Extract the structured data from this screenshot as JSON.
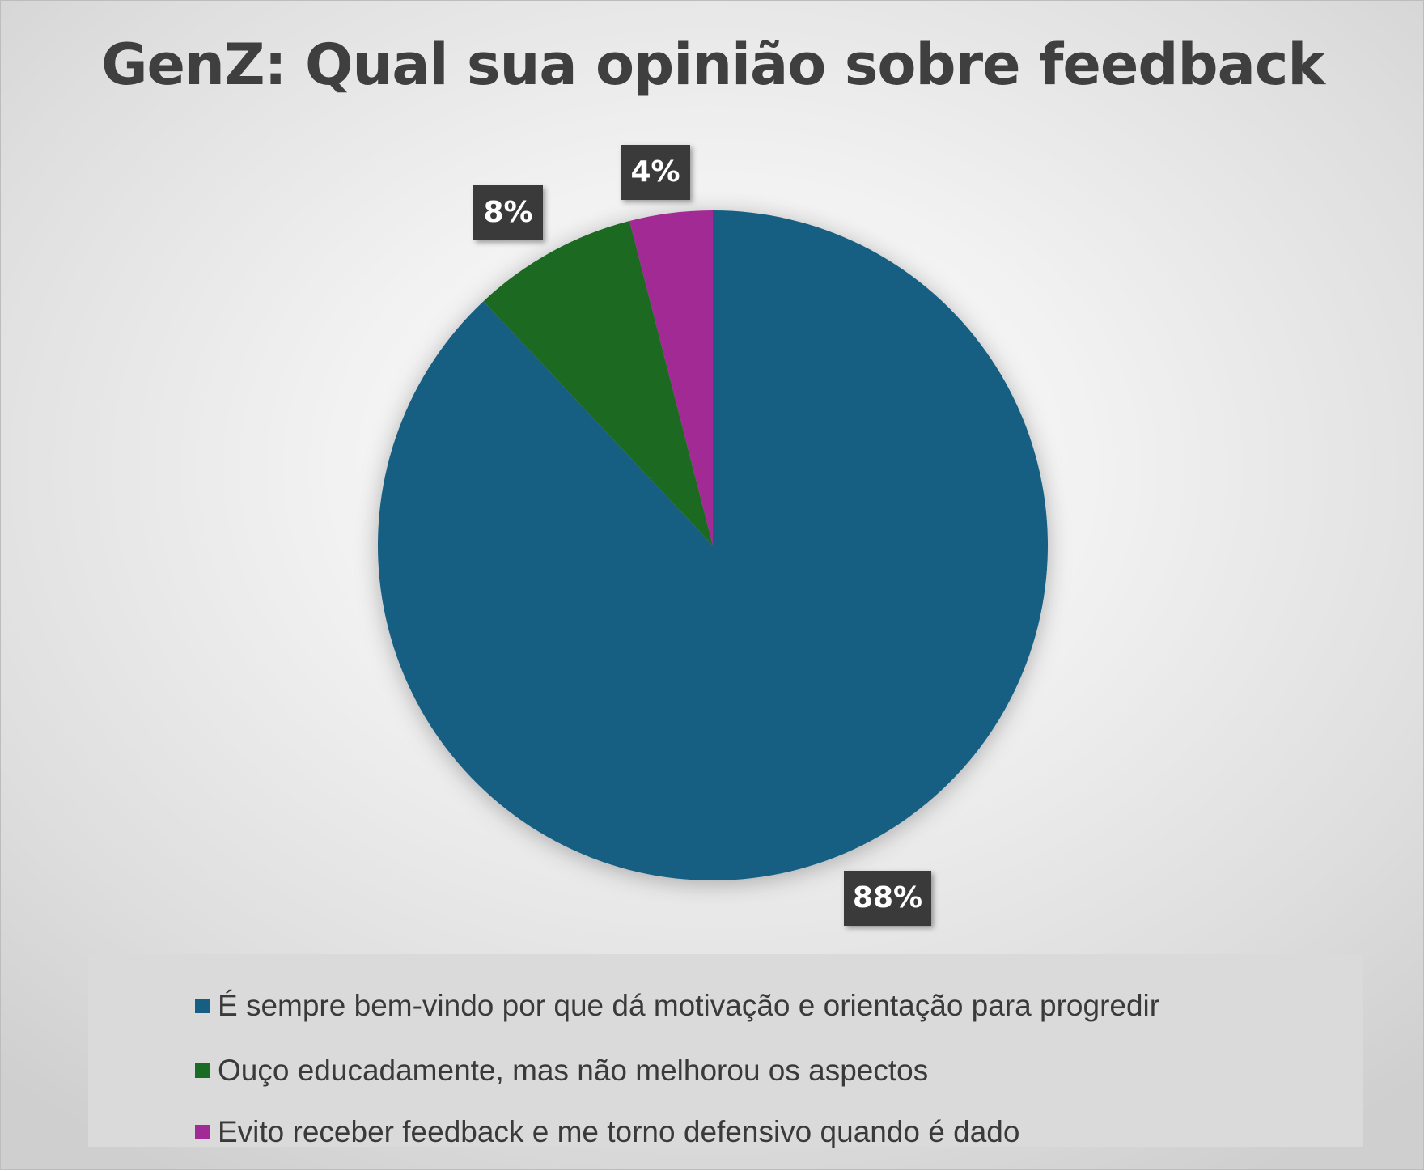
{
  "chart_data": {
    "type": "pie",
    "title": "GenZ: Qual sua opinião sobre feedback",
    "legend_position": "bottom",
    "slices": [
      {
        "name": "É sempre bem-vindo por que dá motivação e orientação para progredir",
        "value": 88,
        "label": "88%",
        "color": "#165e82"
      },
      {
        "name": "Ouço educadamente, mas não melhorou os aspectos",
        "value": 8,
        "label": "8%",
        "color": "#1a6b24"
      },
      {
        "name": "Evito receber feedback e me torno defensivo quando é dado",
        "value": 4,
        "label": "4%",
        "color": "#a12a94"
      }
    ]
  }
}
